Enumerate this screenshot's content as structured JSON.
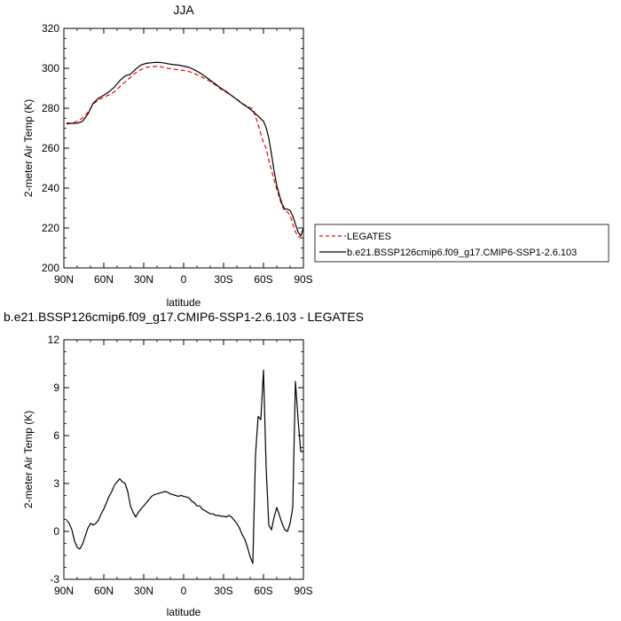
{
  "chart_data": [
    {
      "type": "line",
      "title": "JJA",
      "xlabel": "latitude",
      "ylabel": "2-meter Air Temp (K)",
      "xlim": [
        90,
        -90
      ],
      "ylim": [
        200,
        320
      ],
      "xticks": [
        90,
        60,
        30,
        0,
        -30,
        -60,
        -90
      ],
      "xtick_labels": [
        "90N",
        "60N",
        "30N",
        "0",
        "30S",
        "60S",
        "90S"
      ],
      "yticks": [
        200,
        220,
        240,
        260,
        280,
        300,
        320
      ],
      "ytick_labels": [
        "200",
        "220",
        "240",
        "260",
        "280",
        "300",
        "320"
      ],
      "legend_position": "right",
      "series": [
        {
          "name": "LEGATES",
          "color": "#ff0000",
          "dash": "dashed",
          "x": [
            88,
            84,
            80,
            76,
            72,
            68,
            64,
            60,
            56,
            52,
            48,
            44,
            40,
            36,
            32,
            28,
            24,
            20,
            16,
            12,
            8,
            4,
            0,
            -4,
            -8,
            -12,
            -16,
            -20,
            -24,
            -28,
            -32,
            -36,
            -40,
            -44,
            -48,
            -52,
            -56,
            -60,
            -62,
            -64,
            -66,
            -68,
            -70,
            -72,
            -74,
            -76,
            -78,
            -80,
            -82,
            -84,
            -86,
            -88,
            -90
          ],
          "y": [
            272,
            272.5,
            273.5,
            275,
            278,
            282,
            284.3,
            285.5,
            286.7,
            288.3,
            290.8,
            293.2,
            295.5,
            297.8,
            299.3,
            300.5,
            300.8,
            301,
            300.6,
            300,
            299.6,
            299.3,
            298.9,
            298.4,
            297.4,
            296.2,
            294.8,
            293.4,
            291.6,
            289.6,
            288,
            286.4,
            284.5,
            282.5,
            280.8,
            279.8,
            271.8,
            262.7,
            260,
            254,
            249,
            244,
            239.4,
            235,
            231,
            228.5,
            228,
            226.5,
            222,
            218,
            216,
            215,
            215
          ]
        },
        {
          "name": "b.e21.BSSP126cmip6.f09_g17.CMIP6-SSP1-2.6.103",
          "color": "#000000",
          "dash": "solid",
          "x": [
            88,
            84,
            80,
            76,
            72,
            68,
            64,
            60,
            56,
            52,
            48,
            44,
            40,
            36,
            32,
            28,
            24,
            20,
            16,
            12,
            8,
            4,
            0,
            -4,
            -8,
            -12,
            -16,
            -20,
            -24,
            -28,
            -32,
            -36,
            -40,
            -44,
            -48,
            -52,
            -56,
            -60,
            -62,
            -64,
            -66,
            -68,
            -70,
            -72,
            -74,
            -76,
            -78,
            -80,
            -82,
            -84,
            -86,
            -88,
            -90
          ],
          "y": [
            272.6,
            272.4,
            272.5,
            273.4,
            277,
            282.5,
            285,
            286.5,
            288.3,
            290.6,
            293.8,
            296.2,
            297,
            299.6,
            301.7,
            302.5,
            302.8,
            303,
            302.8,
            302.3,
            301.9,
            301.6,
            301.1,
            300.5,
            299.3,
            297.8,
            296,
            294,
            292.1,
            290,
            288.4,
            286.3,
            284.4,
            282.3,
            280.6,
            278.4,
            276,
            273.5,
            270.3,
            265,
            257,
            248.5,
            241.3,
            236.2,
            232,
            229.5,
            229.4,
            228.8,
            226,
            222,
            218,
            216,
            220
          ]
        }
      ]
    },
    {
      "type": "line",
      "title": "b.e21.BSSP126cmip6.f09_g17.CMIP6-SSP1-2.6.103 - LEGATES",
      "xlabel": "latitude",
      "ylabel": "2-meter Air Temp (K)",
      "xlim": [
        90,
        -90
      ],
      "ylim": [
        -3,
        12
      ],
      "xticks": [
        90,
        60,
        30,
        0,
        -30,
        -60,
        -90
      ],
      "xtick_labels": [
        "90N",
        "60N",
        "30N",
        "0",
        "30S",
        "60S",
        "90S"
      ],
      "yticks": [
        -3,
        0,
        3,
        6,
        9,
        12
      ],
      "ytick_labels": [
        "-3",
        "0",
        "3",
        "6",
        "9",
        "12"
      ],
      "series": [
        {
          "color": "#000000",
          "dash": "solid",
          "x": [
            88,
            86,
            84,
            82,
            80,
            78,
            76,
            74,
            72,
            70,
            68,
            66,
            64,
            62,
            60,
            58,
            56,
            54,
            52,
            50,
            48,
            46,
            44,
            42,
            40,
            38,
            36,
            34,
            32,
            30,
            28,
            26,
            24,
            22,
            20,
            18,
            16,
            14,
            12,
            10,
            8,
            6,
            4,
            2,
            0,
            -2,
            -4,
            -6,
            -8,
            -10,
            -12,
            -14,
            -16,
            -18,
            -20,
            -22,
            -24,
            -26,
            -28,
            -30,
            -32,
            -34,
            -36,
            -38,
            -40,
            -42,
            -44,
            -46,
            -48,
            -50,
            -52,
            -54,
            -56,
            -58,
            -60,
            -62,
            -64,
            -66,
            -68,
            -70,
            -72,
            -74,
            -76,
            -78,
            -80,
            -82,
            -84,
            -86,
            -88,
            -90
          ],
          "y": [
            0.7,
            0.5,
            0.1,
            -0.6,
            -1,
            -1.1,
            -0.8,
            -0.3,
            0.2,
            0.5,
            0.4,
            0.5,
            0.7,
            1.1,
            1.4,
            1.8,
            2.2,
            2.5,
            2.9,
            3.1,
            3.3,
            3.1,
            3,
            2.5,
            1.6,
            1.2,
            0.9,
            1.2,
            1.4,
            1.6,
            1.8,
            2,
            2.2,
            2.3,
            2.35,
            2.4,
            2.45,
            2.5,
            2.45,
            2.35,
            2.3,
            2.25,
            2.2,
            2.25,
            2.2,
            2.15,
            2.1,
            1.9,
            1.8,
            1.6,
            1.6,
            1.4,
            1.3,
            1.2,
            1.1,
            1.1,
            1,
            1,
            0.95,
            0.95,
            0.9,
            1,
            0.9,
            0.7,
            0.5,
            0.2,
            -0.2,
            -0.5,
            -1,
            -1.6,
            -2,
            4.8,
            7.2,
            7,
            10.1,
            4,
            0.4,
            0.1,
            0.9,
            1.5,
            1,
            0.5,
            0.1,
            0,
            0.5,
            1.5,
            9.4,
            7,
            5,
            5
          ]
        }
      ]
    }
  ]
}
